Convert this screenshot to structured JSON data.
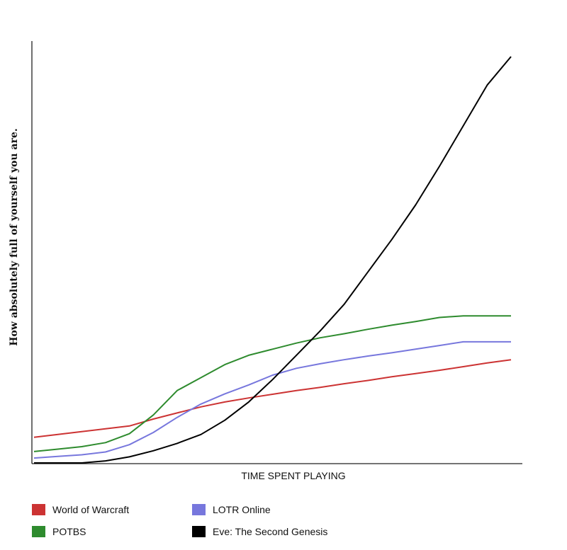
{
  "chart_data": {
    "type": "line",
    "title": "",
    "xlabel": "TIME SPENT PLAYING",
    "ylabel": "How absolutely full of yourself you are.",
    "xlim": [
      0,
      100
    ],
    "ylim": [
      0,
      100
    ],
    "grid": false,
    "legend": "bottom",
    "x": [
      0,
      5,
      10,
      15,
      20,
      25,
      30,
      35,
      40,
      45,
      50,
      55,
      60,
      65,
      70,
      75,
      80,
      85,
      90,
      95,
      100
    ],
    "series": [
      {
        "name": "World of Warcraft",
        "color": "#cc3333",
        "values": [
          6.3,
          7.0,
          7.7,
          8.4,
          9.1,
          10.8,
          12.3,
          13.8,
          15.0,
          16.0,
          16.9,
          17.8,
          18.6,
          19.5,
          20.3,
          21.2,
          22.0,
          22.8,
          23.7,
          24.6,
          25.4
        ]
      },
      {
        "name": "LOTR Online",
        "color": "#7777dd",
        "values": [
          1.2,
          1.6,
          2.0,
          2.7,
          4.5,
          7.5,
          11.2,
          14.5,
          17.0,
          19.2,
          21.6,
          23.3,
          24.4,
          25.4,
          26.3,
          27.1,
          28.0,
          28.9,
          29.8,
          29.8,
          29.8
        ]
      },
      {
        "name": "POTBS",
        "color": "#2e8b2e",
        "values": [
          2.8,
          3.4,
          4.0,
          5.0,
          7.2,
          11.8,
          17.8,
          21.0,
          24.2,
          26.5,
          28.0,
          29.5,
          30.8,
          31.8,
          32.9,
          33.9,
          34.8,
          35.8,
          36.2,
          36.2,
          36.2
        ]
      },
      {
        "name": "Eve: The Second Genesis",
        "color": "#000000",
        "values": [
          0.0,
          0.0,
          0.0,
          0.5,
          1.5,
          3.0,
          4.8,
          7.0,
          10.5,
          15.0,
          20.5,
          26.5,
          32.5,
          39.0,
          47.0,
          55.0,
          63.5,
          73.0,
          83.0,
          93.0,
          100.0
        ]
      }
    ]
  }
}
